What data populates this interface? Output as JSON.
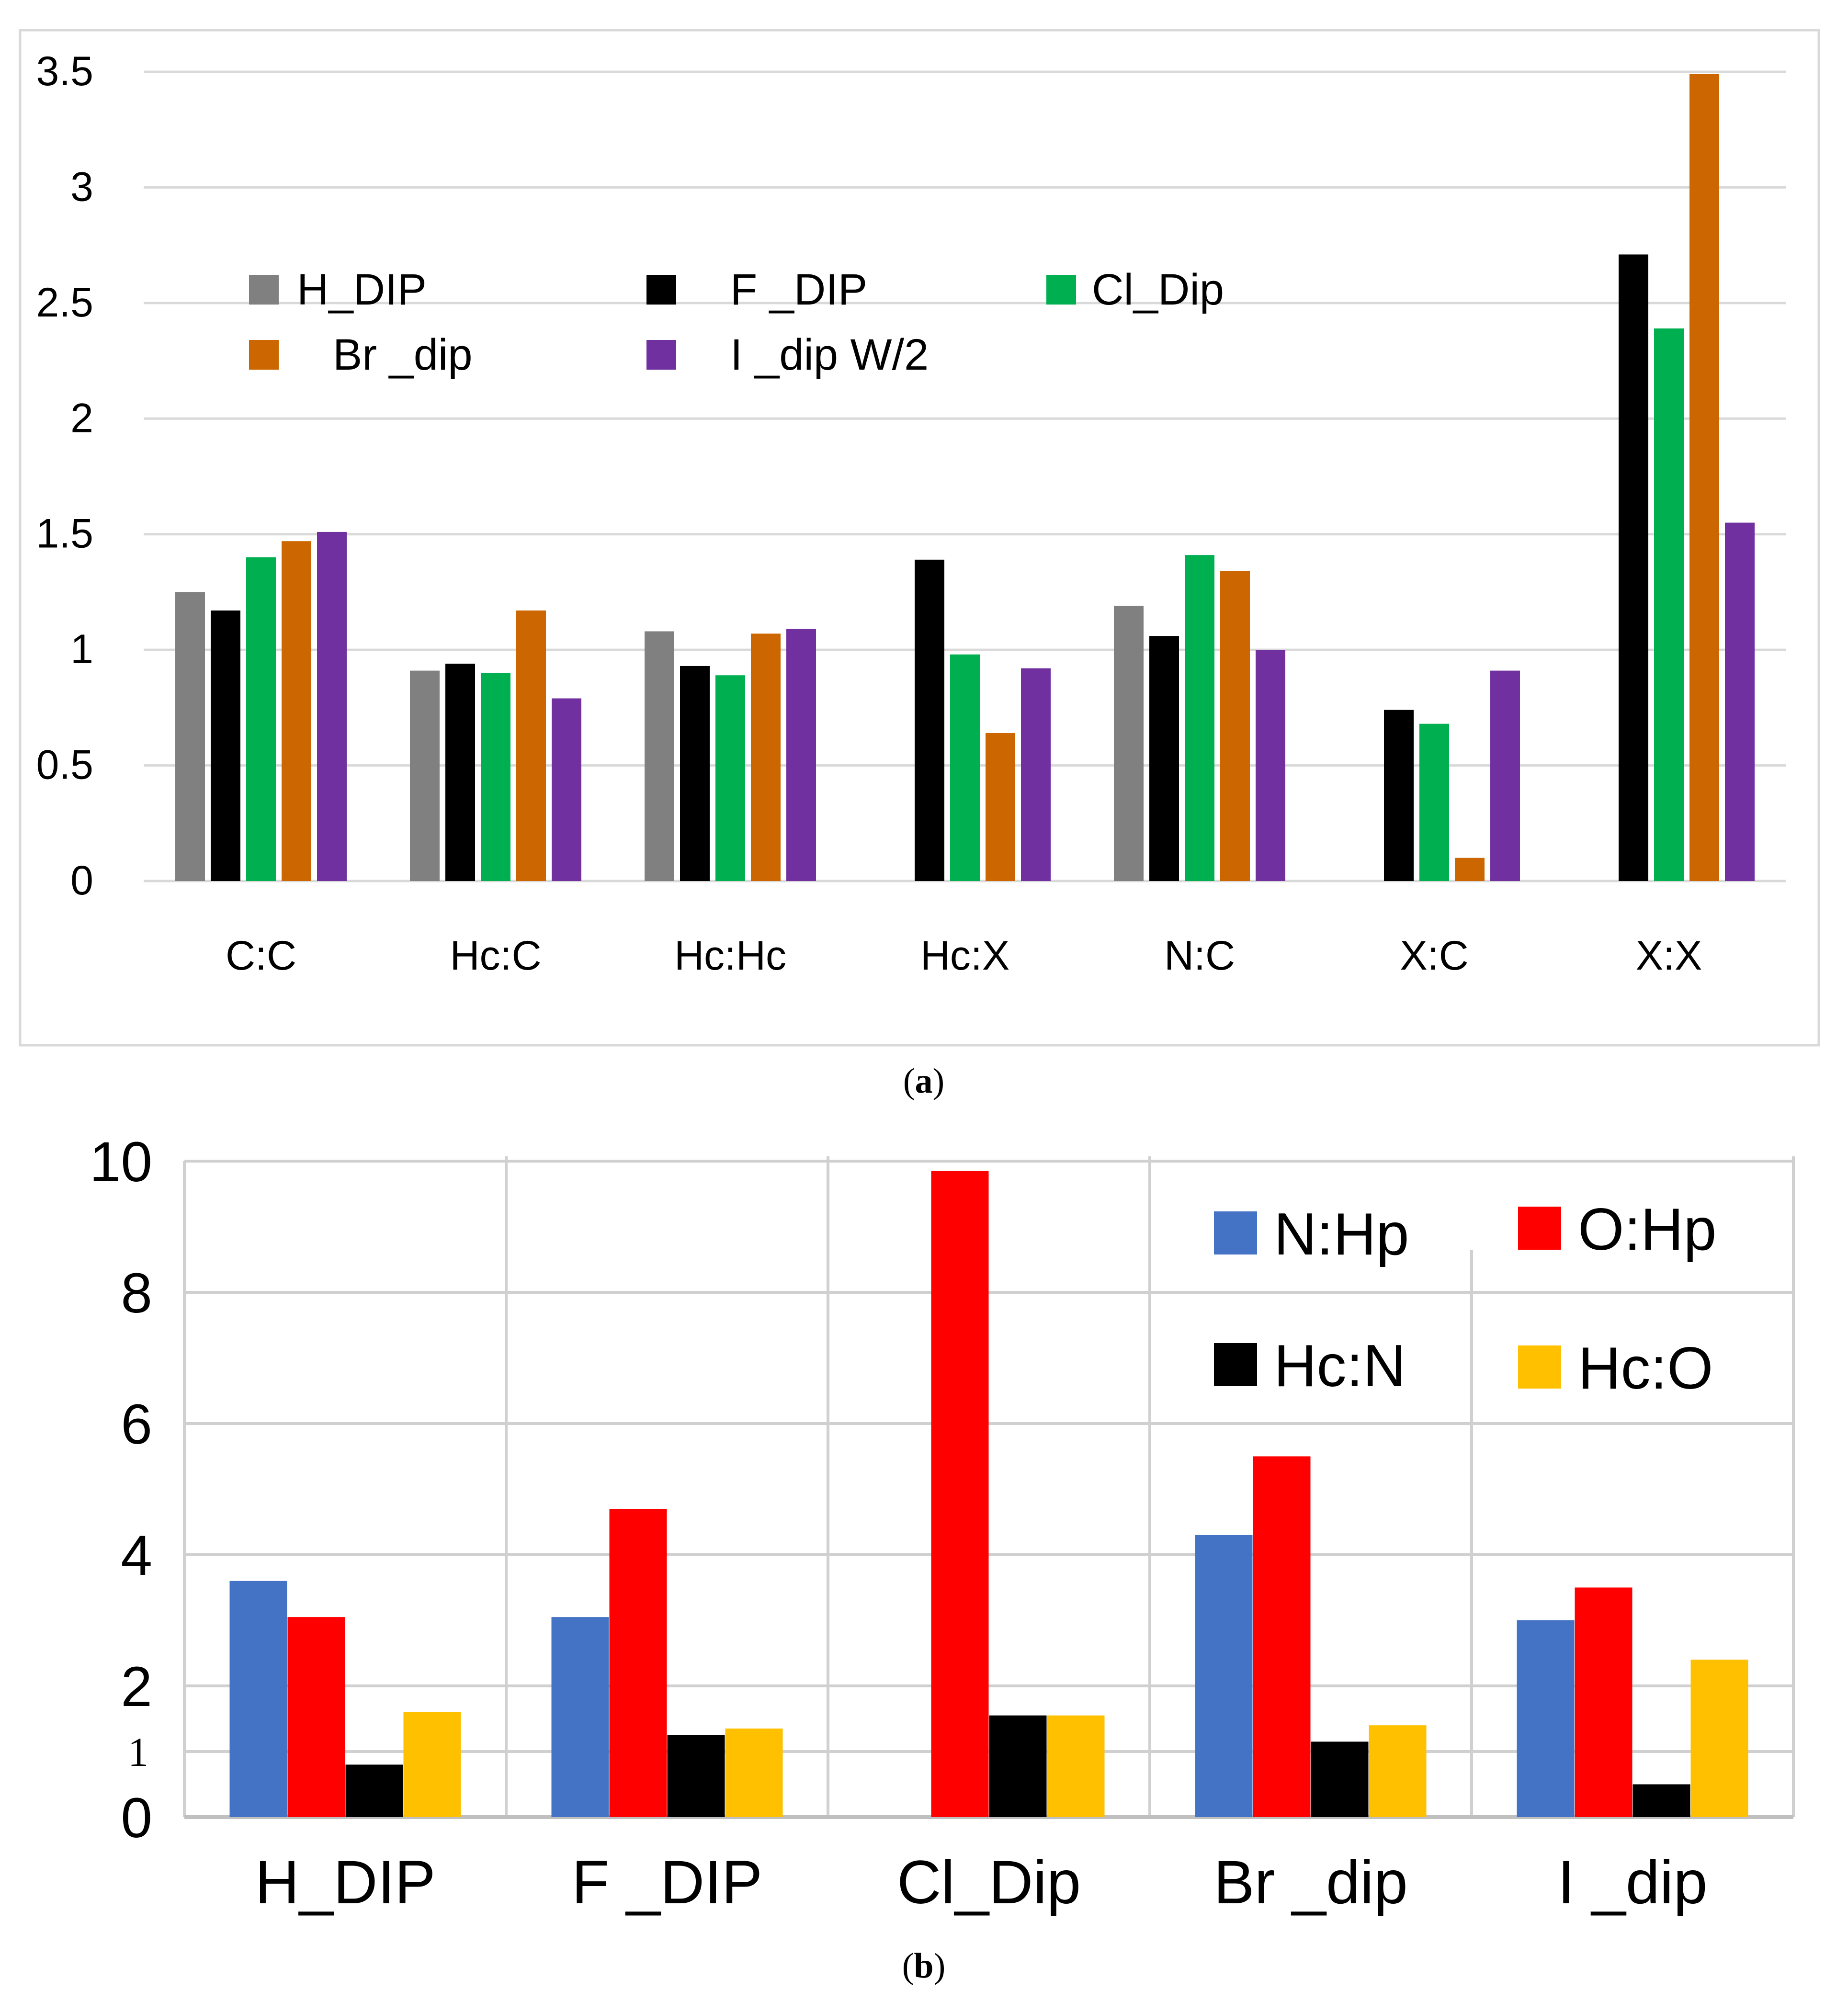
{
  "chart_data": [
    {
      "type": "bar",
      "panel_label": "a",
      "categories": [
        "C:C",
        "Hc:C",
        "Hc:Hc",
        "Hc:X",
        "N:C",
        "X:C",
        "X:X"
      ],
      "ylim": [
        0,
        3.5
      ],
      "yticks": [
        "0",
        "0.5",
        "1",
        "1.5",
        "2",
        "2.5",
        "3",
        "3.5"
      ],
      "ytick_values": [
        0,
        0.5,
        1,
        1.5,
        2,
        2.5,
        3,
        3.5
      ],
      "grid": true,
      "legend_position": "top-left",
      "series": [
        {
          "name": "H_DIP",
          "color": "#808080",
          "values": [
            1.25,
            0.91,
            1.08,
            0,
            1.19,
            0,
            0
          ]
        },
        {
          "name": "F _DIP",
          "color": "#000000",
          "values": [
            1.17,
            0.94,
            0.93,
            1.39,
            1.06,
            0.74,
            2.71
          ]
        },
        {
          "name": "Cl_Dip",
          "color": "#00b050",
          "values": [
            1.4,
            0.9,
            0.89,
            0.98,
            1.41,
            0.68,
            2.39
          ]
        },
        {
          "name": "Br _dip",
          "color": "#cc6600",
          "values": [
            1.47,
            1.17,
            1.07,
            0.64,
            1.34,
            0.1,
            3.49
          ]
        },
        {
          "name": "I _dip W/2",
          "color": "#7030a0",
          "values": [
            1.51,
            0.79,
            1.09,
            0.92,
            1.0,
            0.91,
            1.55
          ]
        }
      ]
    },
    {
      "type": "bar",
      "panel_label": "b",
      "categories": [
        "H_DIP",
        "F _DIP",
        "Cl_Dip",
        "Br _dip",
        "I _dip"
      ],
      "ylim": [
        0,
        10
      ],
      "yticks": [
        "0",
        "1",
        "2",
        "4",
        "6",
        "8",
        "10"
      ],
      "ytick_values": [
        0,
        1,
        2,
        4,
        6,
        8,
        10
      ],
      "grid": true,
      "legend_position": "top-right",
      "series": [
        {
          "name": "N:Hp",
          "color": "#4472c4",
          "values": [
            3.6,
            3.05,
            0,
            4.3,
            3.0
          ]
        },
        {
          "name": "O:Hp",
          "color": "#ff0000",
          "values": [
            3.05,
            4.7,
            9.85,
            5.5,
            3.5
          ]
        },
        {
          "name": "Hc:N",
          "color": "#000000",
          "values": [
            0.8,
            1.25,
            1.55,
            1.15,
            0.5
          ]
        },
        {
          "name": "Hc:O",
          "color": "#ffc000",
          "values": [
            1.6,
            1.35,
            1.55,
            1.4,
            2.4
          ]
        }
      ]
    }
  ]
}
